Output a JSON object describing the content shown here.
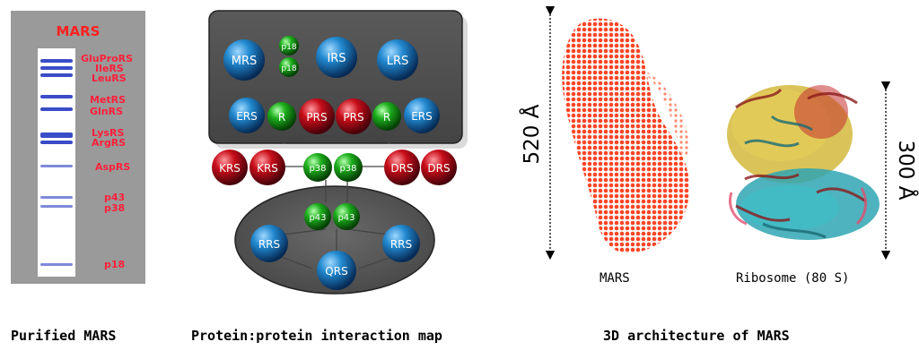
{
  "gel": {
    "title": "MARS",
    "bands": [
      {
        "label": "GluProRS"
      },
      {
        "label": "IleRS"
      },
      {
        "label": "LeuRS"
      },
      {
        "label": "MetRS"
      },
      {
        "label": "GlnRS"
      },
      {
        "label": "LysRS"
      },
      {
        "label": "ArgRS"
      },
      {
        "label": "AspRS"
      },
      {
        "label": "p43"
      },
      {
        "label": "p38"
      },
      {
        "label": "p18"
      }
    ]
  },
  "interaction_map": {
    "nodes": {
      "mrs": "MRS",
      "p18a": "p18",
      "p18b": "p18",
      "irs": "IRS",
      "lrs": "LRS",
      "ers1": "ERS",
      "r1": "R",
      "prs1": "PRS",
      "prs2": "PRS",
      "r2": "R",
      "ers2": "ERS",
      "krs1": "KRS",
      "krs2": "KRS",
      "p38a": "p38",
      "p38b": "p38",
      "drs1": "DRS",
      "drs2": "DRS",
      "p43a": "p43",
      "p43b": "p43",
      "rrs1": "RRS",
      "rrs2": "RRS",
      "qrs": "QRS"
    },
    "colors": {
      "blue": "#1d7fc4",
      "green": "#19b020",
      "red": "#d01020"
    }
  },
  "architecture": {
    "mars_label": "MARS",
    "ribosome_label": "Ribosome (80 S)",
    "mars_dimension": "520 Å",
    "ribosome_dimension": "300 Å"
  },
  "captions": {
    "gel": "Purified MARS",
    "map": "Protein:protein interaction map",
    "arch": "3D architecture of MARS"
  }
}
